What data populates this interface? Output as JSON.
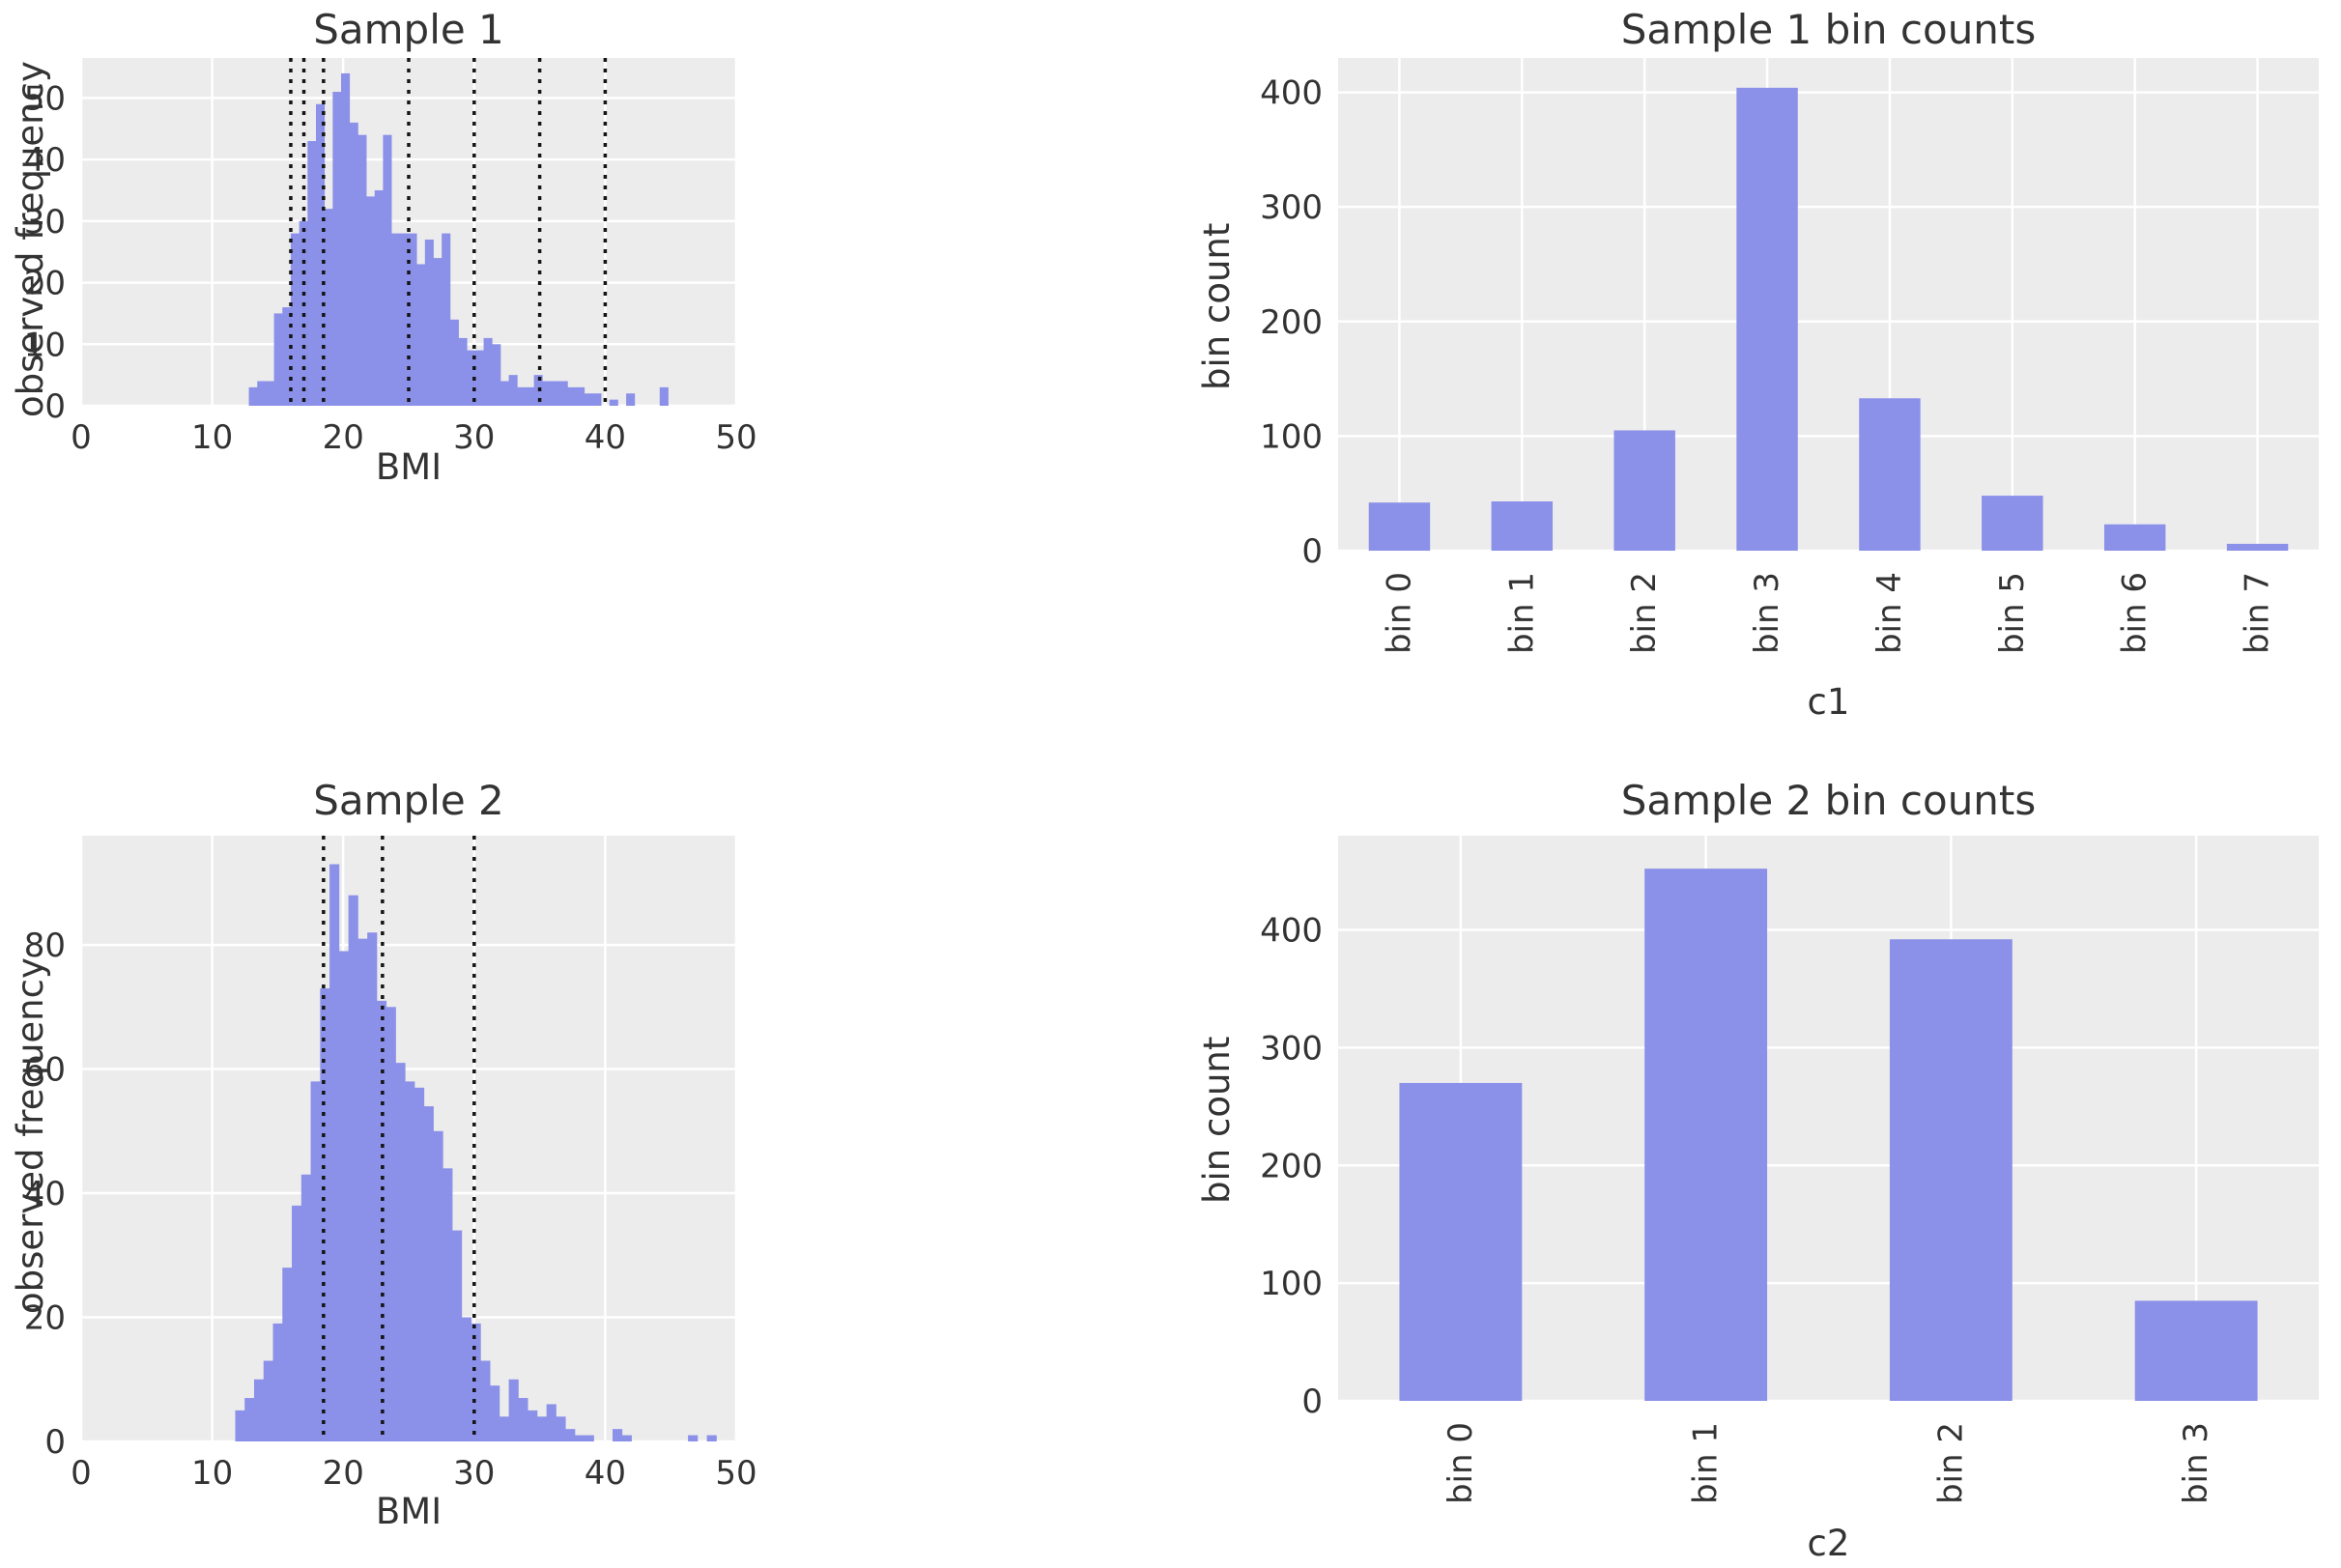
{
  "figure": {
    "background": "#ffffff",
    "plot_bg": "#ececec",
    "grid_color": "#ffffff",
    "bar_color": "#8b90e8",
    "cutoff_color": "#141414",
    "text_color": "#333333"
  },
  "chart_data": [
    {
      "type": "histogram",
      "title": "Sample 1",
      "xlabel": "BMI",
      "ylabel": "observed frequency",
      "xlim": [
        0,
        50
      ],
      "ylim": [
        0,
        56.5
      ],
      "xticks": [
        0,
        10,
        20,
        30,
        40,
        50
      ],
      "yticks": [
        0,
        10,
        20,
        30,
        40,
        50
      ],
      "grid": true,
      "bin_start": 12.8,
      "bin_width": 0.64,
      "counts": [
        3,
        4,
        4,
        15,
        16,
        28,
        30,
        43,
        49,
        32,
        51,
        54,
        46,
        44,
        34,
        35,
        44,
        28,
        28,
        28,
        23,
        27,
        24,
        28,
        14,
        11,
        9,
        9,
        11,
        10,
        4,
        5,
        3,
        3,
        5,
        4,
        4,
        4,
        3,
        3,
        2,
        2,
        0,
        1,
        0,
        2,
        0,
        0,
        0,
        3
      ],
      "cutoffs": [
        16,
        17,
        18.5,
        25,
        30,
        35,
        40
      ]
    },
    {
      "type": "bar",
      "title": "Sample 1 bin counts",
      "xlabel": "c1",
      "ylabel": "bin count",
      "categories": [
        "bin 0",
        "bin 1",
        "bin 2",
        "bin 3",
        "bin 4",
        "bin 5",
        "bin 6",
        "bin 7"
      ],
      "values": [
        42,
        43,
        105,
        404,
        133,
        48,
        23,
        6
      ],
      "ylim": [
        0,
        430
      ],
      "yticks": [
        0,
        100,
        200,
        300,
        400
      ],
      "grid": true,
      "legend_position": "none"
    },
    {
      "type": "histogram",
      "title": "Sample 2",
      "xlabel": "BMI",
      "ylabel": "observed frequency",
      "xlim": [
        0,
        50
      ],
      "ylim": [
        0,
        97.6
      ],
      "xticks": [
        0,
        10,
        20,
        30,
        40,
        50
      ],
      "yticks": [
        0,
        20,
        40,
        60,
        80
      ],
      "grid": true,
      "bin_start": 11.76,
      "bin_width": 0.72,
      "counts": [
        5,
        7,
        10,
        13,
        19,
        28,
        38,
        43,
        58,
        73,
        93,
        79,
        88,
        81,
        82,
        71,
        70,
        61,
        58,
        57,
        54,
        50,
        44,
        34,
        20,
        19,
        13,
        9,
        4,
        10,
        7,
        5,
        4,
        6,
        4,
        2,
        1,
        1,
        0,
        0,
        2,
        1,
        0,
        0,
        0,
        0,
        0,
        0,
        1,
        0,
        1,
        0
      ],
      "cutoffs": [
        18.5,
        23,
        30
      ]
    },
    {
      "type": "bar",
      "title": "Sample 2 bin counts",
      "xlabel": "c2",
      "ylabel": "bin count",
      "categories": [
        "bin 0",
        "bin 1",
        "bin 2",
        "bin 3"
      ],
      "values": [
        270,
        452,
        392,
        85
      ],
      "ylim": [
        0,
        480
      ],
      "yticks": [
        0,
        100,
        200,
        300,
        400
      ],
      "grid": true,
      "legend_position": "none"
    }
  ]
}
